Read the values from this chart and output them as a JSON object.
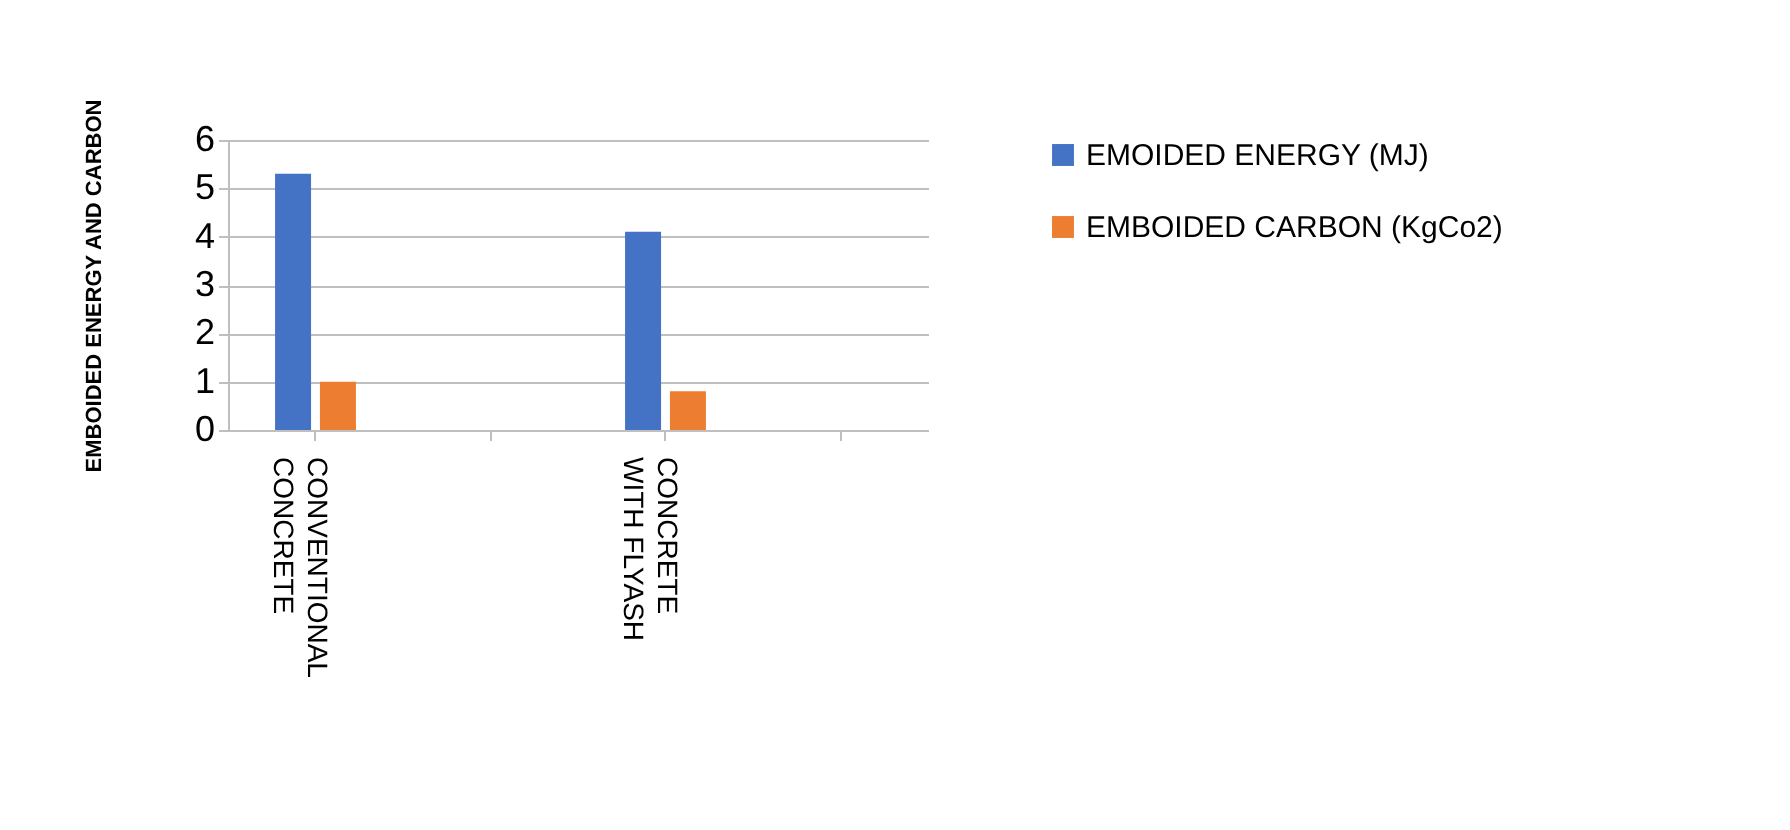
{
  "chart_data": {
    "type": "bar",
    "ylabel": "EMBOIDED  ENERGY  AND CARBON",
    "categories": [
      "CONVENTIONAL CONCRETE",
      null,
      "CONCRETE WITH FLYASH",
      null
    ],
    "series": [
      {
        "name": "EMOIDED ENERGY (MJ)",
        "color": "#4472c4",
        "values": [
          5.3,
          null,
          4.1,
          null
        ]
      },
      {
        "name": "EMBOIDED CARBON (KgCo2)",
        "color": "#ed7d31",
        "values": [
          1.0,
          null,
          0.8,
          null
        ]
      }
    ],
    "ylim": [
      0,
      6
    ],
    "yticks": [
      0,
      1,
      2,
      3,
      4,
      5,
      6
    ],
    "grid": "y",
    "legend": "right"
  }
}
